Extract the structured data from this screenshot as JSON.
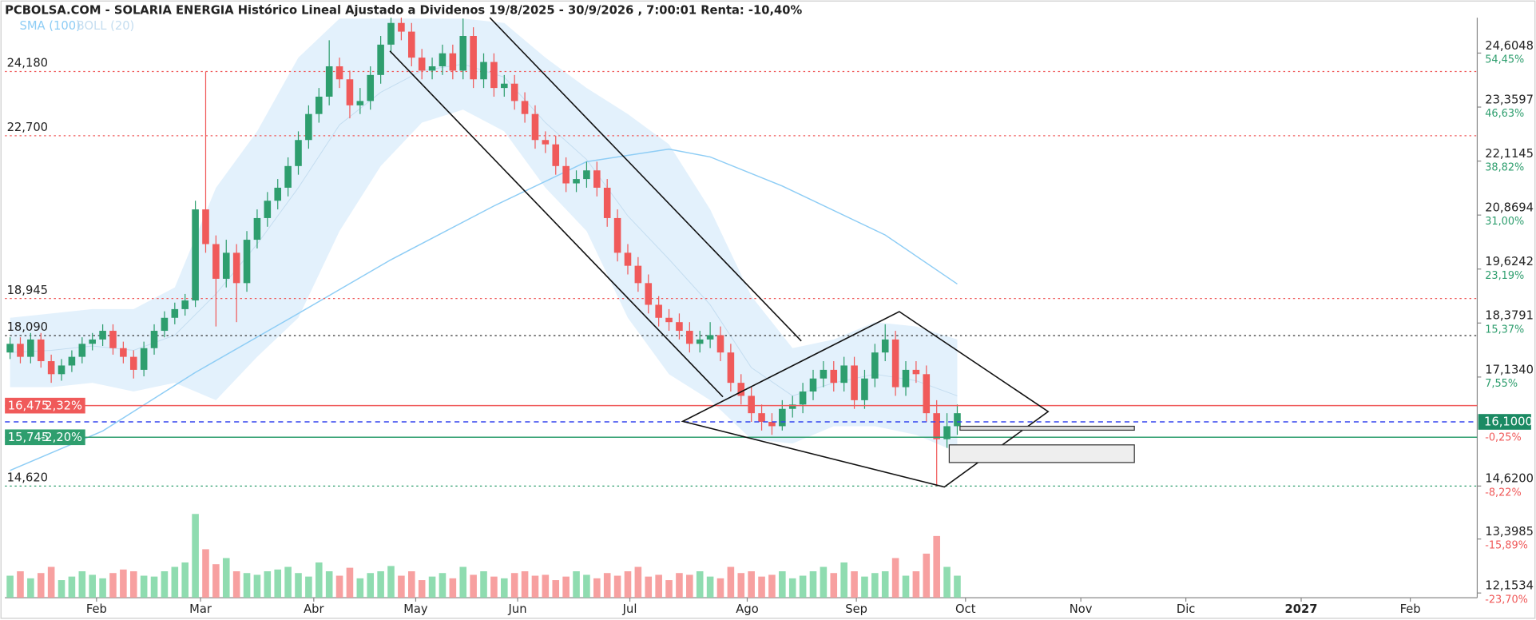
{
  "chart_data": {
    "type": "candlestick",
    "title": "PCBOLSA.COM - SOLARIA ENERGIA Histórico Lineal Ajustado a Dividenos 19/8/2025 - 30/9/2026 , 7:00:01 Renta: -10,40%",
    "up_color": "#2e9e6e",
    "down_color": "#f05a5a",
    "volume_up_color": "#8fdcb0",
    "volume_down_color": "#f7a0a0",
    "candles": [
      [
        17.7,
        18.05,
        17.55,
        17.9
      ],
      [
        17.9,
        18.05,
        17.45,
        17.6
      ],
      [
        17.6,
        18.15,
        17.45,
        18.0
      ],
      [
        18.0,
        18.15,
        17.35,
        17.5
      ],
      [
        17.5,
        17.65,
        17.0,
        17.2
      ],
      [
        17.2,
        17.55,
        17.05,
        17.4
      ],
      [
        17.4,
        17.75,
        17.25,
        17.6
      ],
      [
        17.6,
        18.05,
        17.45,
        17.9
      ],
      [
        17.9,
        18.15,
        17.75,
        18.0
      ],
      [
        18.0,
        18.35,
        17.85,
        18.2
      ],
      [
        18.2,
        18.35,
        17.65,
        17.8
      ],
      [
        17.8,
        17.95,
        17.45,
        17.6
      ],
      [
        17.6,
        17.75,
        17.1,
        17.3
      ],
      [
        17.3,
        17.95,
        17.15,
        17.8
      ],
      [
        17.8,
        18.35,
        17.65,
        18.2
      ],
      [
        18.2,
        18.65,
        18.05,
        18.5
      ],
      [
        18.5,
        18.85,
        18.35,
        18.7
      ],
      [
        18.7,
        19.05,
        18.55,
        18.9
      ],
      [
        18.9,
        21.2,
        18.75,
        21.0
      ],
      [
        21.0,
        24.18,
        20.0,
        20.2
      ],
      [
        20.2,
        20.4,
        18.3,
        19.4
      ],
      [
        19.4,
        20.3,
        19.2,
        20.0
      ],
      [
        20.0,
        20.2,
        18.4,
        19.3
      ],
      [
        19.3,
        20.5,
        19.1,
        20.3
      ],
      [
        20.3,
        21.0,
        20.1,
        20.8
      ],
      [
        20.8,
        21.4,
        20.6,
        21.2
      ],
      [
        21.2,
        21.7,
        21.0,
        21.5
      ],
      [
        21.5,
        22.2,
        21.3,
        22.0
      ],
      [
        22.0,
        22.8,
        21.8,
        22.6
      ],
      [
        22.6,
        23.4,
        22.4,
        23.2
      ],
      [
        23.2,
        23.8,
        23.0,
        23.6
      ],
      [
        23.6,
        24.9,
        23.4,
        24.3
      ],
      [
        24.3,
        24.5,
        23.8,
        24.0
      ],
      [
        24.0,
        24.2,
        23.1,
        23.4
      ],
      [
        23.4,
        23.8,
        23.2,
        23.5
      ],
      [
        23.5,
        24.3,
        23.3,
        24.1
      ],
      [
        24.1,
        25.0,
        23.9,
        24.8
      ],
      [
        24.8,
        25.5,
        24.6,
        25.3
      ],
      [
        25.3,
        25.5,
        24.9,
        25.1
      ],
      [
        25.1,
        25.3,
        24.3,
        24.5
      ],
      [
        24.5,
        24.7,
        24.0,
        24.2
      ],
      [
        24.2,
        24.5,
        24.0,
        24.3
      ],
      [
        24.3,
        24.8,
        24.1,
        24.6
      ],
      [
        24.6,
        24.8,
        24.0,
        24.2
      ],
      [
        24.2,
        25.4,
        24.0,
        25.0
      ],
      [
        25.0,
        25.2,
        23.8,
        24.0
      ],
      [
        24.0,
        24.6,
        23.8,
        24.4
      ],
      [
        24.4,
        24.6,
        23.6,
        23.8
      ],
      [
        23.8,
        24.1,
        23.6,
        23.9
      ],
      [
        23.9,
        24.1,
        23.3,
        23.5
      ],
      [
        23.5,
        23.7,
        23.0,
        23.2
      ],
      [
        23.2,
        23.4,
        22.4,
        22.6
      ],
      [
        22.6,
        22.8,
        22.3,
        22.5
      ],
      [
        22.5,
        22.7,
        21.8,
        22.0
      ],
      [
        22.0,
        22.2,
        21.4,
        21.6
      ],
      [
        21.6,
        21.9,
        21.4,
        21.7
      ],
      [
        21.7,
        22.1,
        21.5,
        21.9
      ],
      [
        21.9,
        22.1,
        21.3,
        21.5
      ],
      [
        21.5,
        21.7,
        20.6,
        20.8
      ],
      [
        20.8,
        21.0,
        19.8,
        20.0
      ],
      [
        20.0,
        20.2,
        19.5,
        19.7
      ],
      [
        19.7,
        19.9,
        19.1,
        19.3
      ],
      [
        19.3,
        19.5,
        18.6,
        18.8
      ],
      [
        18.8,
        19.0,
        18.3,
        18.5
      ],
      [
        18.5,
        18.7,
        18.2,
        18.4
      ],
      [
        18.4,
        18.6,
        18.0,
        18.2
      ],
      [
        18.2,
        18.4,
        17.7,
        17.9
      ],
      [
        17.9,
        18.2,
        17.7,
        18.0
      ],
      [
        18.0,
        18.4,
        17.8,
        18.1
      ],
      [
        18.1,
        18.3,
        17.5,
        17.7
      ],
      [
        17.7,
        17.9,
        16.8,
        17.0
      ],
      [
        17.0,
        17.2,
        16.5,
        16.7
      ],
      [
        16.7,
        16.9,
        16.1,
        16.3
      ],
      [
        16.3,
        16.5,
        15.9,
        16.1
      ],
      [
        16.1,
        16.3,
        15.8,
        16.0
      ],
      [
        16.0,
        16.6,
        15.9,
        16.4
      ],
      [
        16.4,
        16.7,
        16.2,
        16.5
      ],
      [
        16.5,
        17.0,
        16.3,
        16.8
      ],
      [
        16.8,
        17.3,
        16.6,
        17.1
      ],
      [
        17.1,
        17.5,
        16.9,
        17.3
      ],
      [
        17.3,
        17.5,
        16.8,
        17.0
      ],
      [
        17.0,
        17.6,
        16.8,
        17.4
      ],
      [
        17.4,
        17.6,
        16.4,
        16.6
      ],
      [
        16.6,
        17.3,
        16.4,
        17.1
      ],
      [
        17.1,
        17.9,
        16.9,
        17.7
      ],
      [
        17.7,
        18.35,
        17.5,
        18.0
      ],
      [
        18.0,
        18.2,
        16.7,
        16.9
      ],
      [
        16.9,
        17.5,
        16.7,
        17.3
      ],
      [
        17.3,
        17.5,
        17.0,
        17.2
      ],
      [
        17.2,
        17.4,
        16.1,
        16.3
      ],
      [
        16.3,
        16.6,
        14.62,
        15.7
      ],
      [
        15.7,
        16.3,
        15.5,
        16.0
      ],
      [
        16.0,
        16.5,
        15.8,
        16.3
      ]
    ],
    "volume": [
      25,
      30,
      22,
      28,
      35,
      20,
      24,
      30,
      26,
      22,
      28,
      32,
      30,
      25,
      24,
      30,
      35,
      40,
      95,
      55,
      38,
      45,
      30,
      28,
      26,
      30,
      32,
      35,
      28,
      24,
      40,
      30,
      25,
      34,
      22,
      28,
      30,
      36,
      25,
      30,
      20,
      24,
      28,
      22,
      35,
      26,
      30,
      24,
      22,
      28,
      30,
      25,
      26,
      20,
      24,
      30,
      26,
      22,
      28,
      25,
      30,
      35,
      24,
      26,
      20,
      28,
      26,
      30,
      24,
      22,
      35,
      28,
      30,
      24,
      26,
      30,
      22,
      25,
      30,
      35,
      28,
      40,
      30,
      24,
      28,
      30,
      45,
      25,
      30,
      50,
      70,
      35,
      25
    ],
    "volume_lim": [
      0,
      100
    ],
    "sma": {
      "name": "SMA (100)",
      "color": "#8ecdf5",
      "x": [
        0,
        9,
        18,
        28,
        37,
        47,
        56,
        64,
        68,
        75,
        85,
        92
      ],
      "values": [
        14.98,
        15.89,
        17.24,
        18.6,
        19.84,
        21.08,
        22.1,
        22.39,
        22.21,
        21.54,
        20.41,
        19.28
      ]
    },
    "bollinger": {
      "name": "BOLL (20)",
      "color": "#dcedfb",
      "label_color": "#c4ddf0",
      "x": [
        0,
        4,
        8,
        12,
        16,
        20,
        24,
        28,
        32,
        36,
        40,
        44,
        48,
        52,
        56,
        60,
        64,
        68,
        72,
        76,
        80,
        84,
        88,
        92
      ],
      "upper": [
        18.5,
        18.6,
        18.7,
        18.7,
        19.2,
        21.5,
        22.8,
        24.5,
        25.4,
        25.4,
        25.4,
        25.4,
        25.3,
        24.5,
        23.8,
        23.2,
        22.5,
        21.0,
        19.0,
        17.8,
        18.0,
        18.4,
        18.3,
        18.0
      ],
      "lower": [
        16.9,
        16.9,
        17.0,
        16.8,
        17.0,
        16.6,
        17.6,
        18.5,
        20.5,
        22.0,
        23.0,
        23.3,
        22.8,
        21.5,
        20.5,
        18.5,
        17.2,
        16.6,
        15.7,
        15.6,
        16.0,
        16.0,
        15.8,
        15.4
      ]
    },
    "xlim": [
      -0.5,
      142.5
    ],
    "xticks": [
      {
        "value": 8.4,
        "label": "Feb"
      },
      {
        "value": 18.5,
        "label": "Mar"
      },
      {
        "value": 29.5,
        "label": "Abr"
      },
      {
        "value": 39.4,
        "label": "May"
      },
      {
        "value": 49.3,
        "label": "Jun"
      },
      {
        "value": 60.2,
        "label": "Jul"
      },
      {
        "value": 71.6,
        "label": "Ago"
      },
      {
        "value": 82.2,
        "label": "Sep"
      },
      {
        "value": 92.8,
        "label": "Oct"
      },
      {
        "value": 104,
        "label": "Nov"
      },
      {
        "value": 114.2,
        "label": "Dic"
      },
      {
        "value": 125.4,
        "label": "2027",
        "bold": true
      },
      {
        "value": 136,
        "label": "Feb"
      }
    ],
    "ylim": [
      12.044,
      25.422
    ],
    "yticks": [
      {
        "value": 24.6048,
        "label": "24,6048"
      },
      {
        "value": 23.3597,
        "label": "23,3597"
      },
      {
        "value": 22.1145,
        "label": "22,1145"
      },
      {
        "value": 20.8694,
        "label": "20,8694"
      },
      {
        "value": 19.6242,
        "label": "19,6242"
      },
      {
        "value": 18.3791,
        "label": "18,3791"
      },
      {
        "value": 17.134,
        "label": "17,1340"
      },
      {
        "value": 14.62,
        "label": "14,6200"
      },
      {
        "value": 13.3985,
        "label": "13,3985"
      },
      {
        "value": 12.1534,
        "label": "12,1534"
      }
    ],
    "pct_ticks": [
      {
        "value": 24.6048,
        "label": "54,45%",
        "color": "#2e9e6e"
      },
      {
        "value": 23.3597,
        "label": "46,63%",
        "color": "#2e9e6e"
      },
      {
        "value": 22.1145,
        "label": "38,82%",
        "color": "#2e9e6e"
      },
      {
        "value": 20.8694,
        "label": "31,00%",
        "color": "#2e9e6e"
      },
      {
        "value": 19.6242,
        "label": "23,19%",
        "color": "#2e9e6e"
      },
      {
        "value": 18.3791,
        "label": "15,37%",
        "color": "#2e9e6e"
      },
      {
        "value": 17.134,
        "label": "7,55%",
        "color": "#2e9e6e"
      },
      {
        "value": 15.8889,
        "label": "-0,25%",
        "color": "#f05a5a"
      },
      {
        "value": 14.62,
        "label": "-8,22%",
        "color": "#f05a5a"
      },
      {
        "value": 13.3985,
        "label": "-15,89%",
        "color": "#f05a5a"
      },
      {
        "value": 12.1534,
        "label": "-23,70%",
        "color": "#f05a5a"
      }
    ],
    "levels": [
      {
        "value": 24.18,
        "label": "24,180",
        "color": "#f05a5a"
      },
      {
        "value": 22.7,
        "label": "22,700",
        "color": "#f05a5a"
      },
      {
        "value": 18.945,
        "label": "18,945",
        "color": "#f05a5a"
      },
      {
        "value": 18.09,
        "label": "18,090",
        "color": "#333333"
      },
      {
        "value": 14.62,
        "label": "14,620",
        "color": "#2e9e6e"
      }
    ],
    "markers": [
      {
        "value": 16.475,
        "label": "16,475",
        "pct": "2,32%",
        "color": "#f05a5a",
        "side": "left",
        "dashed": false
      },
      {
        "value": 15.745,
        "label": "15,745",
        "pct": "-2,20%",
        "color": "#2e9e6e",
        "side": "left",
        "dashed": false
      },
      {
        "value": 16.1,
        "label": "16,1000",
        "color": "#1b8a63",
        "line_color": "#3344ee",
        "side": "right",
        "dashed": true
      }
    ]
  }
}
